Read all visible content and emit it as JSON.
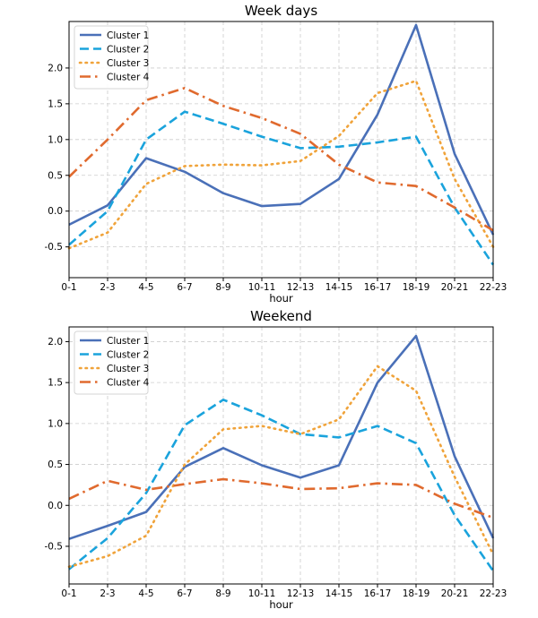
{
  "chart_data": [
    {
      "type": "line",
      "title": "Week days",
      "xlabel": "hour",
      "ylabel": "",
      "categories": [
        "0-1",
        "2-3",
        "4-5",
        "6-7",
        "8-9",
        "10-11",
        "12-13",
        "14-15",
        "16-17",
        "18-19",
        "20-21",
        "22-23"
      ],
      "ylim": [
        -0.93,
        2.65
      ],
      "yticks": [
        -0.5,
        0.0,
        0.5,
        1.0,
        1.5,
        2.0
      ],
      "ytick_labels": [
        "-0.5",
        "0.0",
        "0.5",
        "1.0",
        "1.5",
        "2.0"
      ],
      "grid": true,
      "legend_position": "top-left",
      "series": [
        {
          "name": "Cluster 1",
          "style": "solid",
          "color": "#4a70b8",
          "values": [
            -0.19,
            0.08,
            0.74,
            0.55,
            0.25,
            0.07,
            0.1,
            0.45,
            1.35,
            2.6,
            0.8,
            -0.33
          ]
        },
        {
          "name": "Cluster 2",
          "style": "dashed",
          "color": "#1aa3dc",
          "values": [
            -0.47,
            0.0,
            1.0,
            1.39,
            1.22,
            1.04,
            0.88,
            0.9,
            0.96,
            1.04,
            0.05,
            -0.75
          ]
        },
        {
          "name": "Cluster 3",
          "style": "dotted",
          "color": "#f0a33a",
          "values": [
            -0.52,
            -0.3,
            0.38,
            0.63,
            0.65,
            0.64,
            0.7,
            1.05,
            1.65,
            1.82,
            0.45,
            -0.5
          ]
        },
        {
          "name": "Cluster 4",
          "style": "dashdot",
          "color": "#e06a2e",
          "values": [
            0.48,
            1.0,
            1.55,
            1.72,
            1.47,
            1.3,
            1.08,
            0.65,
            0.4,
            0.35,
            0.05,
            -0.27
          ]
        }
      ]
    },
    {
      "type": "line",
      "title": "Weekend",
      "xlabel": "hour",
      "ylabel": "",
      "categories": [
        "0-1",
        "2-3",
        "4-5",
        "6-7",
        "8-9",
        "10-11",
        "12-13",
        "14-15",
        "16-17",
        "18-19",
        "20-21",
        "22-23"
      ],
      "ylim": [
        -0.96,
        2.18
      ],
      "yticks": [
        -0.5,
        0.0,
        0.5,
        1.0,
        1.5,
        2.0
      ],
      "ytick_labels": [
        "-0.5",
        "0.0",
        "0.5",
        "1.0",
        "1.5",
        "2.0"
      ],
      "grid": true,
      "legend_position": "top-left",
      "series": [
        {
          "name": "Cluster 1",
          "style": "solid",
          "color": "#4a70b8",
          "values": [
            -0.41,
            -0.25,
            -0.08,
            0.47,
            0.7,
            0.49,
            0.34,
            0.49,
            1.5,
            2.07,
            0.6,
            -0.4
          ]
        },
        {
          "name": "Cluster 2",
          "style": "dashed",
          "color": "#1aa3dc",
          "values": [
            -0.78,
            -0.4,
            0.15,
            0.98,
            1.29,
            1.1,
            0.87,
            0.83,
            0.97,
            0.76,
            -0.12,
            -0.8
          ]
        },
        {
          "name": "Cluster 3",
          "style": "dotted",
          "color": "#f0a33a",
          "values": [
            -0.75,
            -0.62,
            -0.37,
            0.5,
            0.93,
            0.97,
            0.87,
            1.05,
            1.7,
            1.4,
            0.35,
            -0.6
          ]
        },
        {
          "name": "Cluster 4",
          "style": "dashdot",
          "color": "#e06a2e",
          "values": [
            0.08,
            0.3,
            0.19,
            0.26,
            0.32,
            0.27,
            0.2,
            0.21,
            0.27,
            0.25,
            0.02,
            -0.15
          ]
        }
      ]
    }
  ]
}
